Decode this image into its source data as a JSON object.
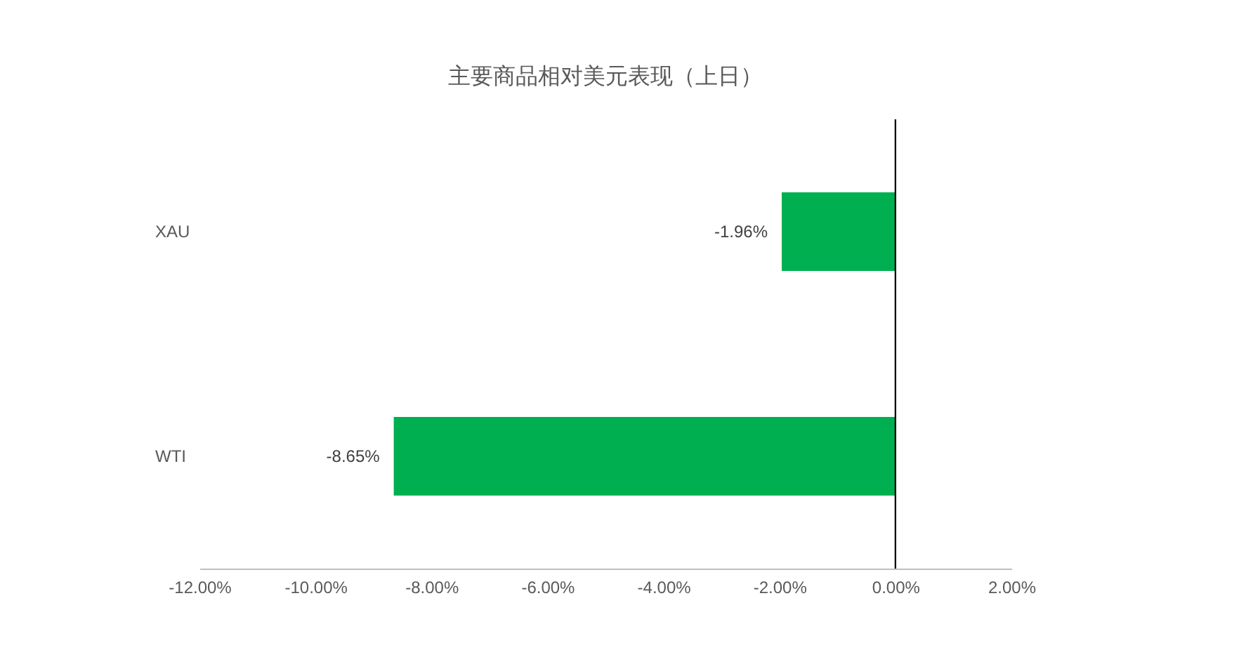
{
  "chart_data": {
    "type": "bar",
    "orientation": "horizontal",
    "title": "主要商品相对美元表现（上日）",
    "categories": [
      "XAU",
      "WTI"
    ],
    "values": [
      -1.96,
      -8.65
    ],
    "value_labels": [
      "-1.96%",
      "-8.65%"
    ],
    "color": "#00b050",
    "xlim": [
      -12,
      2
    ],
    "xticks": [
      {
        "value": -12,
        "label": "-12.00%"
      },
      {
        "value": -10,
        "label": "-10.00%"
      },
      {
        "value": -8,
        "label": "-8.00%"
      },
      {
        "value": -6,
        "label": "-6.00%"
      },
      {
        "value": -4,
        "label": "-4.00%"
      },
      {
        "value": -2,
        "label": "-2.00%"
      },
      {
        "value": 0,
        "label": "0.00%"
      },
      {
        "value": 2,
        "label": "2.00%"
      }
    ],
    "tick_labels": "xy"
  }
}
